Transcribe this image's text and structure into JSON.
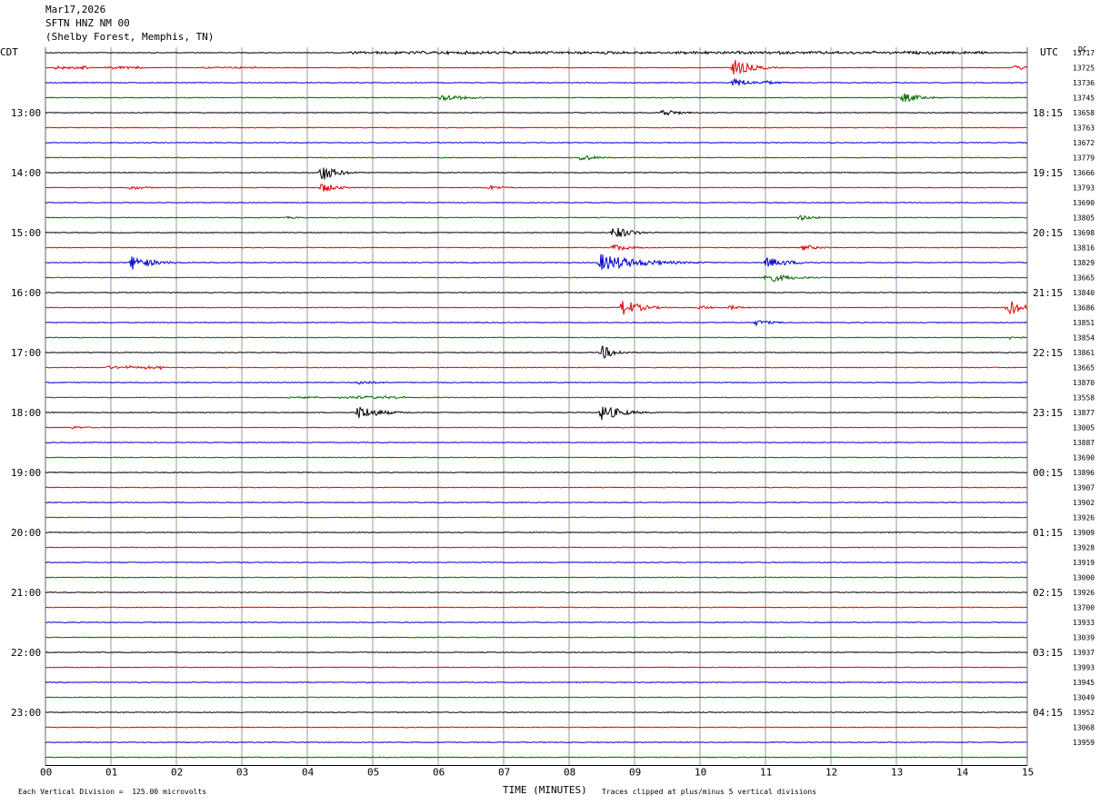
{
  "header": {
    "date": "Mar17,2026",
    "station": "SFTN HNZ NM 00",
    "location": "(Shelby Forest, Memphis, TN)"
  },
  "left_zone_label": "CDT",
  "right_zone_label": "UTC",
  "counts_unit": "DC",
  "xlabel": "TIME (MINUTES)",
  "footer_left": "Each Vertical Division =  125.00 microvolts",
  "footer_right": "Traces clipped at plus/minus 5 vertical divisions",
  "colors": {
    "cycle": [
      "#000000",
      "#dd0000",
      "#0000cc",
      "#006600"
    ],
    "grid": "#808080"
  },
  "chart_data": {
    "type": "line",
    "title": "SFTN HNZ NM 00",
    "xlabel": "TIME (MINUTES)",
    "xlim": [
      0,
      15
    ],
    "x_ticks": [
      "00",
      "01",
      "02",
      "03",
      "04",
      "05",
      "06",
      "07",
      "08",
      "09",
      "10",
      "11",
      "12",
      "13",
      "14",
      "15"
    ],
    "trace_count": 48,
    "left_hour_labels": [
      {
        "row": 4,
        "text": "13:00"
      },
      {
        "row": 8,
        "text": "14:00"
      },
      {
        "row": 12,
        "text": "15:00"
      },
      {
        "row": 16,
        "text": "16:00"
      },
      {
        "row": 20,
        "text": "17:00"
      },
      {
        "row": 24,
        "text": "18:00"
      },
      {
        "row": 28,
        "text": "19:00"
      },
      {
        "row": 32,
        "text": "20:00"
      },
      {
        "row": 36,
        "text": "21:00"
      },
      {
        "row": 40,
        "text": "22:00"
      },
      {
        "row": 44,
        "text": "23:00"
      }
    ],
    "right_hour_labels": [
      {
        "row": 4,
        "text": "18:15"
      },
      {
        "row": 8,
        "text": "19:15"
      },
      {
        "row": 12,
        "text": "20:15"
      },
      {
        "row": 16,
        "text": "21:15"
      },
      {
        "row": 20,
        "text": "22:15"
      },
      {
        "row": 24,
        "text": "23:15"
      },
      {
        "row": 28,
        "text": "00:15"
      },
      {
        "row": 32,
        "text": "01:15"
      },
      {
        "row": 36,
        "text": "02:15"
      },
      {
        "row": 40,
        "text": "03:15"
      },
      {
        "row": 44,
        "text": "04:15"
      }
    ],
    "right_counts": [
      "13717",
      "13725",
      "13736",
      "13745",
      "13658",
      "13763",
      "13672",
      "13779",
      "13666",
      "13793",
      "13690",
      "13805",
      "13698",
      "13816",
      "13829",
      "13665",
      "13840",
      "13686",
      "13851",
      "13854",
      "13861",
      "13665",
      "13870",
      "13558",
      "13877",
      "13005",
      "13887",
      "13690",
      "13896",
      "13907",
      "13902",
      "13926",
      "13909",
      "13928",
      "13919",
      "13000",
      "13926",
      "13700",
      "13933",
      "13039",
      "13937",
      "13993",
      "13945",
      "13049",
      "13952",
      "13068",
      "13959"
    ],
    "events": [
      {
        "row": 0,
        "t": 4.6,
        "dur": 9.8,
        "amp": 0.55,
        "kind": "noise"
      },
      {
        "row": 1,
        "t": 0.15,
        "dur": 0.5,
        "amp": 0.6,
        "kind": "noise"
      },
      {
        "row": 1,
        "t": 0.9,
        "dur": 0.6,
        "amp": 0.45,
        "kind": "noise"
      },
      {
        "row": 1,
        "t": 2.4,
        "dur": 0.9,
        "amp": 0.35,
        "kind": "noise"
      },
      {
        "row": 1,
        "t": 10.52,
        "dur": 0.25,
        "amp": 3.0,
        "kind": "quake"
      },
      {
        "row": 1,
        "t": 14.8,
        "dur": 0.2,
        "amp": 1.0,
        "kind": "quake"
      },
      {
        "row": 2,
        "t": 10.52,
        "dur": 0.25,
        "amp": 1.6,
        "kind": "quake"
      },
      {
        "row": 2,
        "t": 10.95,
        "dur": 0.25,
        "amp": 0.9,
        "kind": "quake"
      },
      {
        "row": 3,
        "t": 6.05,
        "dur": 0.35,
        "amp": 1.3,
        "kind": "quake"
      },
      {
        "row": 3,
        "t": 13.1,
        "dur": 0.3,
        "amp": 1.6,
        "kind": "quake"
      },
      {
        "row": 4,
        "t": 9.42,
        "dur": 0.25,
        "amp": 1.3,
        "kind": "quake"
      },
      {
        "row": 5,
        "t": 10.2,
        "dur": 0.5,
        "amp": 0.15,
        "kind": "noise"
      },
      {
        "row": 7,
        "t": 8.18,
        "dur": 0.22,
        "amp": 1.3,
        "kind": "quake"
      },
      {
        "row": 8,
        "t": 4.22,
        "dur": 0.22,
        "amp": 3.0,
        "kind": "quake"
      },
      {
        "row": 9,
        "t": 1.28,
        "dur": 0.25,
        "amp": 0.8,
        "kind": "quake"
      },
      {
        "row": 9,
        "t": 4.22,
        "dur": 0.22,
        "amp": 1.8,
        "kind": "quake"
      },
      {
        "row": 9,
        "t": 6.78,
        "dur": 0.25,
        "amp": 0.8,
        "kind": "quake"
      },
      {
        "row": 11,
        "t": 3.7,
        "dur": 0.25,
        "amp": 0.4,
        "kind": "quake"
      },
      {
        "row": 11,
        "t": 11.5,
        "dur": 0.25,
        "amp": 1.0,
        "kind": "quake"
      },
      {
        "row": 12,
        "t": 8.68,
        "dur": 0.25,
        "amp": 2.4,
        "kind": "quake"
      },
      {
        "row": 13,
        "t": 8.68,
        "dur": 0.25,
        "amp": 1.3,
        "kind": "quake"
      },
      {
        "row": 13,
        "t": 11.58,
        "dur": 0.25,
        "amp": 1.0,
        "kind": "quake"
      },
      {
        "row": 14,
        "t": 1.32,
        "dur": 0.3,
        "amp": 2.5,
        "kind": "quake"
      },
      {
        "row": 14,
        "t": 8.48,
        "dur": 0.6,
        "amp": 3.0,
        "kind": "quake"
      },
      {
        "row": 14,
        "t": 11.02,
        "dur": 0.35,
        "amp": 1.8,
        "kind": "quake"
      },
      {
        "row": 15,
        "t": 11.0,
        "dur": 0.35,
        "amp": 1.8,
        "kind": "quake"
      },
      {
        "row": 17,
        "t": 8.82,
        "dur": 0.25,
        "amp": 3.0,
        "kind": "quake"
      },
      {
        "row": 17,
        "t": 10.0,
        "dur": 0.2,
        "amp": 0.8,
        "kind": "quake"
      },
      {
        "row": 17,
        "t": 10.46,
        "dur": 0.2,
        "amp": 0.8,
        "kind": "quake"
      },
      {
        "row": 17,
        "t": 14.7,
        "dur": 0.22,
        "amp": 3.0,
        "kind": "quake"
      },
      {
        "row": 18,
        "t": 10.86,
        "dur": 0.25,
        "amp": 1.0,
        "kind": "quake"
      },
      {
        "row": 19,
        "t": 14.75,
        "dur": 0.15,
        "amp": 0.8,
        "kind": "quake"
      },
      {
        "row": 20,
        "t": 8.5,
        "dur": 0.2,
        "amp": 2.5,
        "kind": "quake"
      },
      {
        "row": 21,
        "t": 0.9,
        "dur": 0.9,
        "amp": 0.6,
        "kind": "noise"
      },
      {
        "row": 22,
        "t": 4.78,
        "dur": 0.3,
        "amp": 0.8,
        "kind": "quake"
      },
      {
        "row": 23,
        "t": 3.7,
        "dur": 0.5,
        "amp": 0.4,
        "kind": "noise"
      },
      {
        "row": 23,
        "t": 4.5,
        "dur": 1.0,
        "amp": 0.55,
        "kind": "noise"
      },
      {
        "row": 24,
        "t": 4.78,
        "dur": 0.3,
        "amp": 2.5,
        "kind": "quake"
      },
      {
        "row": 24,
        "t": 8.5,
        "dur": 0.3,
        "amp": 2.8,
        "kind": "quake"
      },
      {
        "row": 25,
        "t": 0.42,
        "dur": 0.25,
        "amp": 0.5,
        "kind": "quake"
      }
    ]
  }
}
